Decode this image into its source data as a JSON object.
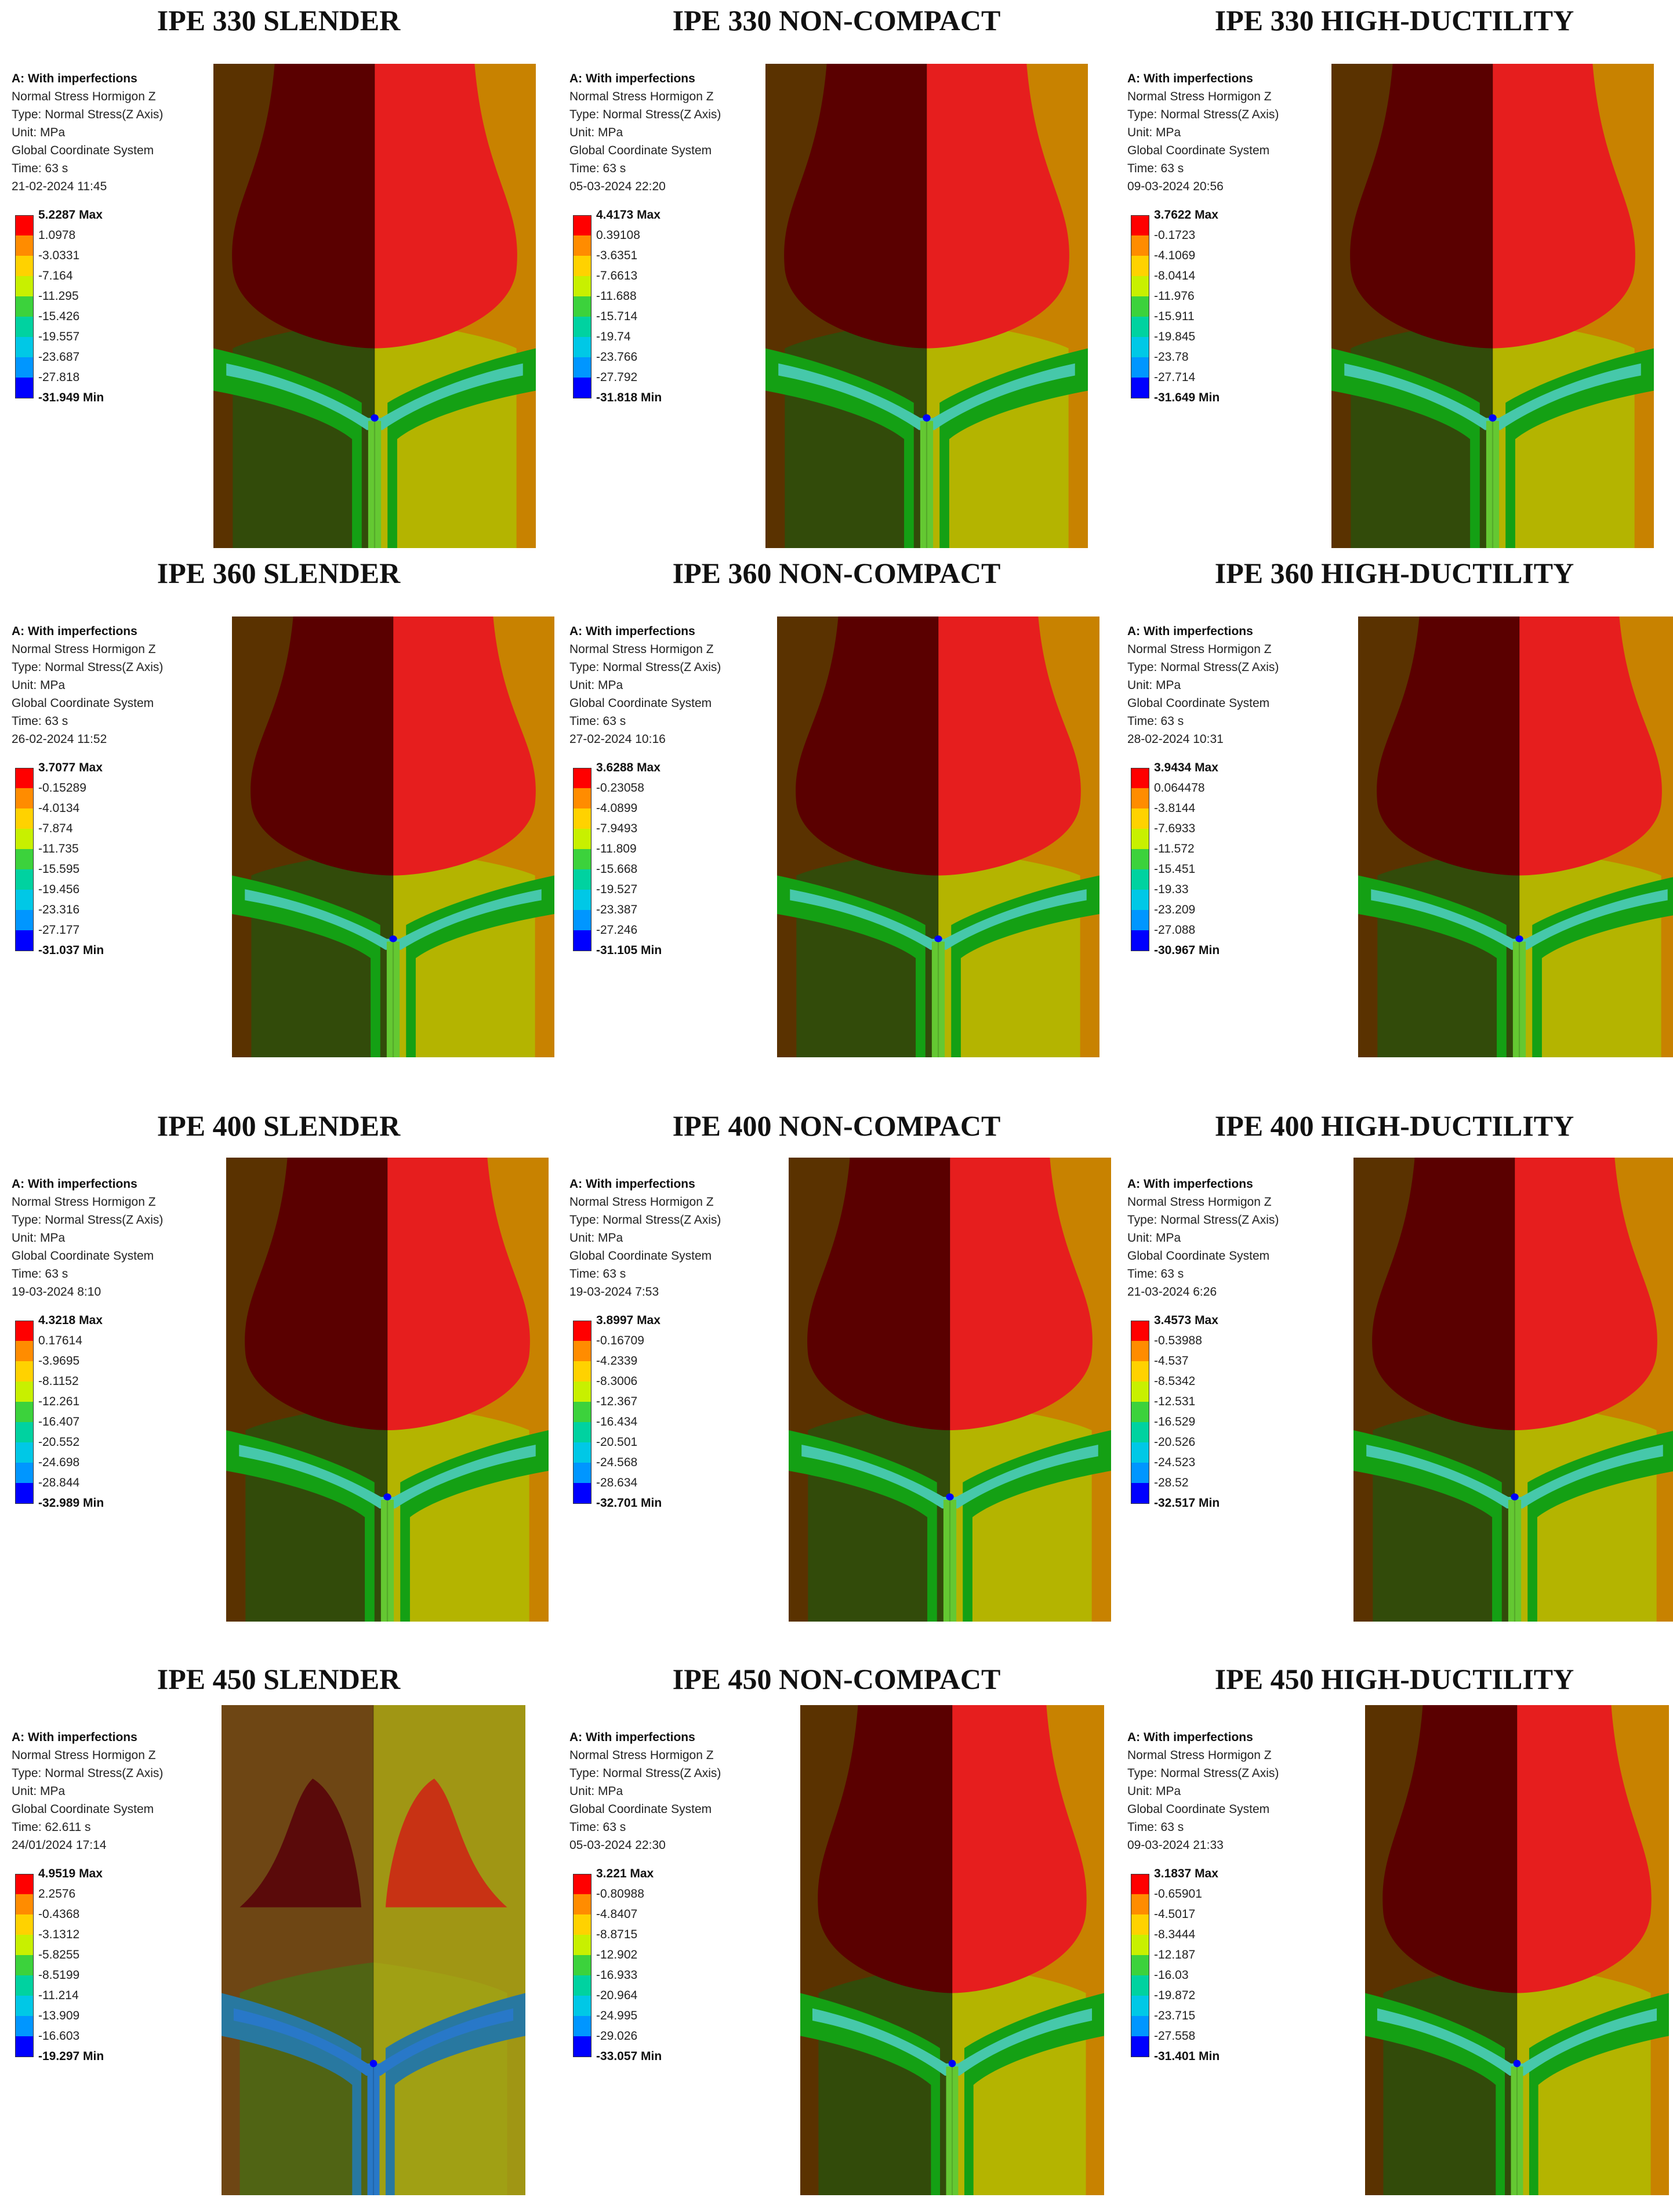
{
  "common": {
    "header": "A: With imperfections",
    "result": "Normal Stress Hormigon Z",
    "type": "Type: Normal Stress(Z Axis)",
    "unit": "Unit: MPa",
    "coords": "Global Coordinate System",
    "scale_colors": [
      "#ff0000",
      "#ff8c00",
      "#ffd200",
      "#c8f000",
      "#3cd23c",
      "#00d2a0",
      "#00c8e6",
      "#0096ff",
      "#0000ff"
    ],
    "contour_colors": {
      "dark_red": "#5a0000",
      "red": "#e61e1e",
      "dark_brown": "#5a3200",
      "orange": "#c88200",
      "dark_green": "#324b0a",
      "yellow_green": "#b4b400",
      "green": "#14a014",
      "light_green": "#64c832",
      "cyan": "#46c8aa",
      "blue": "#2878c8"
    }
  },
  "panels": [
    {
      "title": "IPE 330 SLENDER",
      "time": "Time: 63 s",
      "date": "21-02-2024 11:45",
      "max": "5.2287 Max",
      "levels": [
        "1.0978",
        "-3.0331",
        "-7.164",
        "-11.295",
        "-15.426",
        "-19.557",
        "-23.687",
        "-27.818"
      ],
      "min": "-31.949 Min"
    },
    {
      "title": "IPE 330 NON-COMPACT",
      "time": "Time: 63 s",
      "date": "05-03-2024 22:20",
      "max": "4.4173 Max",
      "levels": [
        "0.39108",
        "-3.6351",
        "-7.6613",
        "-11.688",
        "-15.714",
        "-19.74",
        "-23.766",
        "-27.792"
      ],
      "min": "-31.818 Min"
    },
    {
      "title": "IPE 330 HIGH-DUCTILITY",
      "time": "Time: 63 s",
      "date": "09-03-2024 20:56",
      "max": "3.7622 Max",
      "levels": [
        "-0.1723",
        "-4.1069",
        "-8.0414",
        "-11.976",
        "-15.911",
        "-19.845",
        "-23.78",
        "-27.714"
      ],
      "min": "-31.649 Min"
    },
    {
      "title": "IPE 360 SLENDER",
      "time": "Time: 63 s",
      "date": "26-02-2024 11:52",
      "max": "3.7077 Max",
      "levels": [
        "-0.15289",
        "-4.0134",
        "-7.874",
        "-11.735",
        "-15.595",
        "-19.456",
        "-23.316",
        "-27.177"
      ],
      "min": "-31.037 Min"
    },
    {
      "title": "IPE 360 NON-COMPACT",
      "time": "Time: 63 s",
      "date": "27-02-2024 10:16",
      "max": "3.6288 Max",
      "levels": [
        "-0.23058",
        "-4.0899",
        "-7.9493",
        "-11.809",
        "-15.668",
        "-19.527",
        "-23.387",
        "-27.246"
      ],
      "min": "-31.105 Min"
    },
    {
      "title": "IPE 360 HIGH-DUCTILITY",
      "time": "Time: 63 s",
      "date": "28-02-2024 10:31",
      "max": "3.9434 Max",
      "levels": [
        "0.064478",
        "-3.8144",
        "-7.6933",
        "-11.572",
        "-15.451",
        "-19.33",
        "-23.209",
        "-27.088"
      ],
      "min": "-30.967 Min"
    },
    {
      "title": "IPE 400 SLENDER",
      "time": "Time: 63 s",
      "date": "19-03-2024 8:10",
      "max": "4.3218 Max",
      "levels": [
        "0.17614",
        "-3.9695",
        "-8.1152",
        "-12.261",
        "-16.407",
        "-20.552",
        "-24.698",
        "-28.844"
      ],
      "min": "-32.989 Min"
    },
    {
      "title": "IPE 400 NON-COMPACT",
      "time": "Time: 63 s",
      "date": "19-03-2024 7:53",
      "max": "3.8997 Max",
      "levels": [
        "-0.16709",
        "-4.2339",
        "-8.3006",
        "-12.367",
        "-16.434",
        "-20.501",
        "-24.568",
        "-28.634"
      ],
      "min": "-32.701 Min"
    },
    {
      "title": "IPE 400 HIGH-DUCTILITY",
      "time": "Time: 63 s",
      "date": "21-03-2024 6:26",
      "max": "3.4573 Max",
      "levels": [
        "-0.53988",
        "-4.537",
        "-8.5342",
        "-12.531",
        "-16.529",
        "-20.526",
        "-24.523",
        "-28.52"
      ],
      "min": "-32.517 Min"
    },
    {
      "title": "IPE 450 SLENDER",
      "time": "Time: 62.611 s",
      "date": "24/01/2024 17:14",
      "max": "4.9519 Max",
      "levels": [
        "2.2576",
        "-0.4368",
        "-3.1312",
        "-5.8255",
        "-8.5199",
        "-11.214",
        "-13.909",
        "-16.603"
      ],
      "min": "-19.297 Min"
    },
    {
      "title": "IPE 450 NON-COMPACT",
      "time": "Time: 63 s",
      "date": "05-03-2024 22:30",
      "max": "3.221 Max",
      "levels": [
        "-0.80988",
        "-4.8407",
        "-8.8715",
        "-12.902",
        "-16.933",
        "-20.964",
        "-24.995",
        "-29.026"
      ],
      "min": "-33.057 Min"
    },
    {
      "title": "IPE 450 HIGH-DUCTILITY",
      "time": "Time: 63 s",
      "date": "09-03-2024 21:33",
      "max": "3.1837 Max",
      "levels": [
        "-0.65901",
        "-4.5017",
        "-8.3444",
        "-12.187",
        "-16.03",
        "-19.872",
        "-23.715",
        "-27.558"
      ],
      "min": "-31.401 Min"
    }
  ]
}
